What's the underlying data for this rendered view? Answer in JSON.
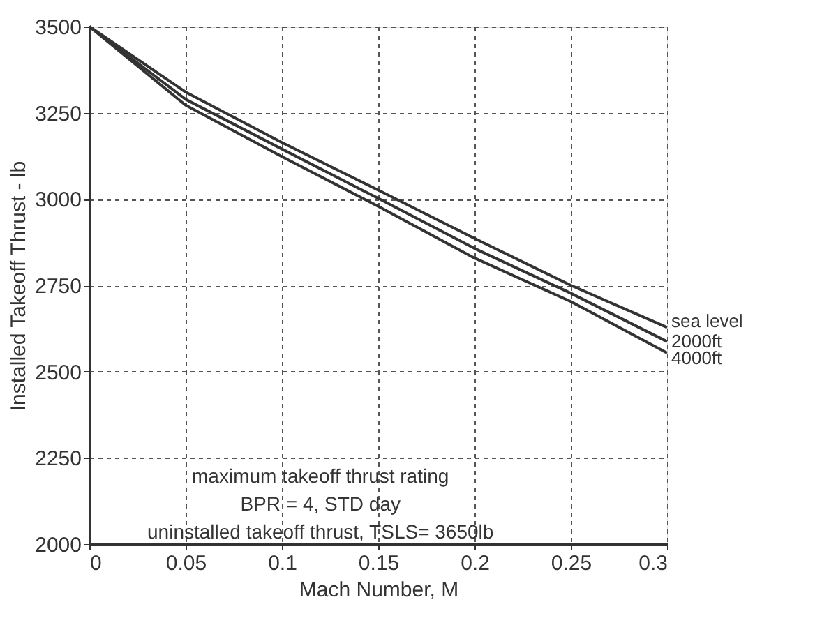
{
  "chart_data": {
    "type": "line",
    "xlabel": "Mach Number, M",
    "ylabel": "Installed Takeoff Thrust - lb",
    "x": [
      0,
      0.05,
      0.1,
      0.15,
      0.2,
      0.25,
      0.3
    ],
    "series": [
      {
        "name": "sea level",
        "color": "#333333",
        "values": [
          3500,
          3310,
          3164,
          3026,
          2886,
          2750,
          2628
        ]
      },
      {
        "name": "2000ft",
        "color": "#333333",
        "values": [
          3500,
          3289,
          3145,
          3002,
          2857,
          2727,
          2587
        ]
      },
      {
        "name": "4000ft",
        "color": "#333333",
        "values": [
          3500,
          3272,
          3123,
          2979,
          2829,
          2703,
          2554
        ]
      }
    ],
    "xlim": [
      0,
      0.3
    ],
    "xticks": [
      0,
      0.05,
      0.1,
      0.15,
      0.2,
      0.25,
      0.3
    ],
    "ylim": [
      2000,
      3500
    ],
    "yticks": [
      2000,
      2250,
      2500,
      2750,
      3000,
      3250,
      3500
    ],
    "grid": true,
    "legend": false,
    "marker": "none",
    "line_style": "solid",
    "annotations": [
      "maximum takeoff thrust rating",
      "BPR = 4,  STD day",
      "uninstalled takeoff thrust, TSLS= 3650lb"
    ]
  }
}
